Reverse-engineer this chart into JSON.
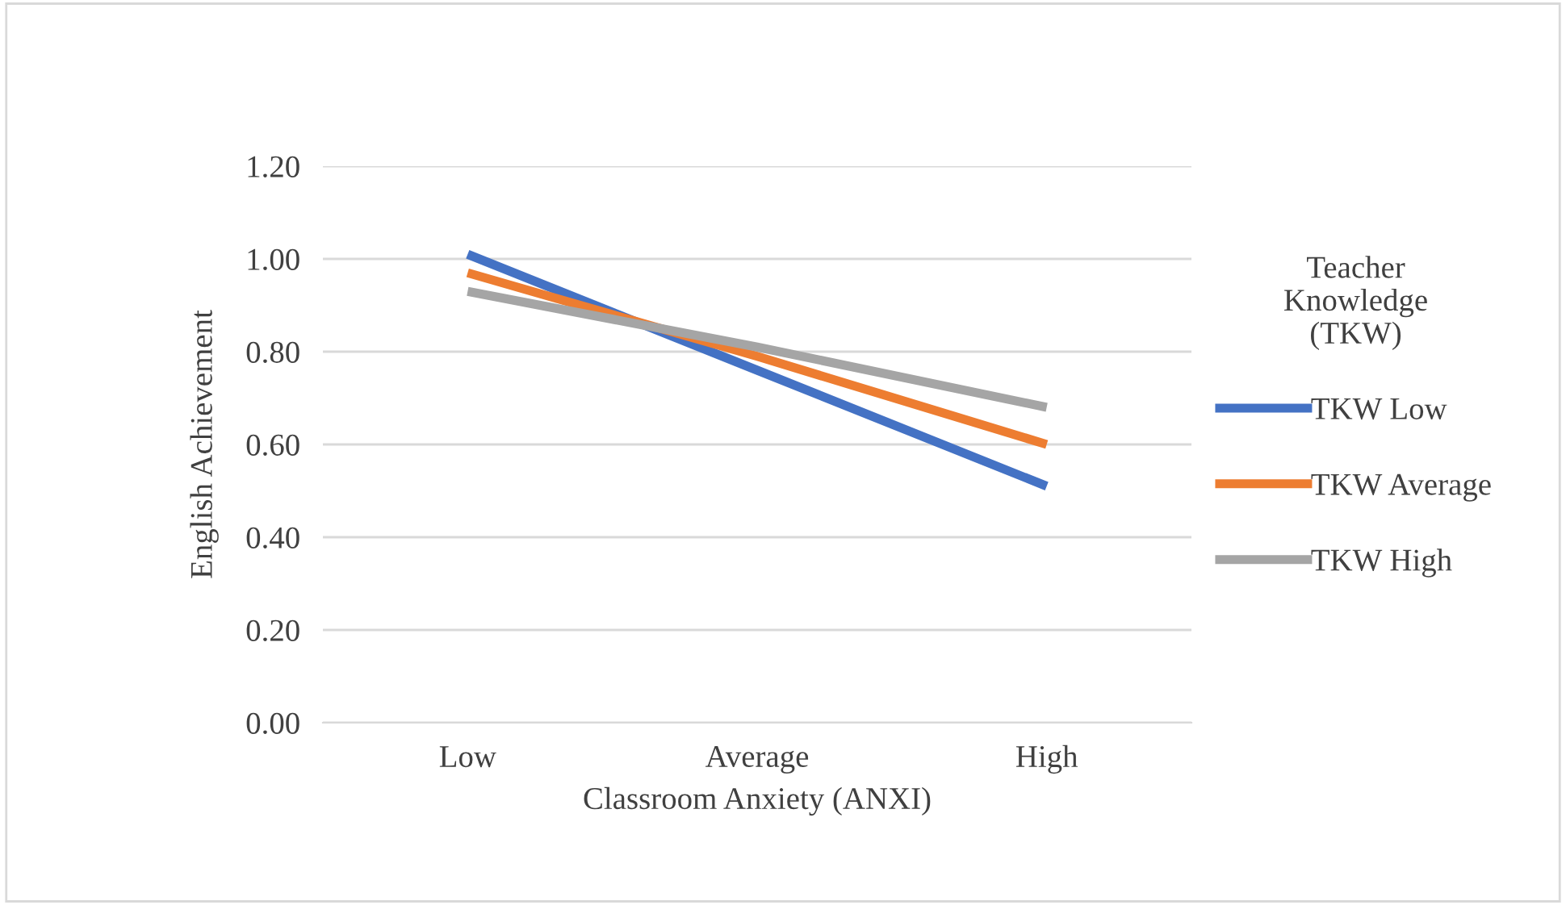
{
  "chart_data": {
    "type": "line",
    "xlabel": "Classroom Anxiety (ANXI)",
    "ylabel": "English Achievement",
    "legend_title": "Teacher\nKnowledge\n(TKW)",
    "categories": [
      "Low",
      "Average",
      "High"
    ],
    "series": [
      {
        "name": "TKW Low",
        "color": "#4472c4",
        "values": [
          1.01,
          0.76,
          0.51
        ]
      },
      {
        "name": "TKW Average",
        "color": "#ed7d31",
        "values": [
          0.97,
          0.79,
          0.6
        ]
      },
      {
        "name": "TKW High",
        "color": "#a5a5a5",
        "values": [
          0.93,
          0.81,
          0.68
        ]
      }
    ],
    "ylim": [
      0,
      1.2
    ],
    "yticks": [
      {
        "value": 0,
        "label": "0.00"
      },
      {
        "value": 0.2,
        "label": "0.20"
      },
      {
        "value": 0.4,
        "label": "0.40"
      },
      {
        "value": 0.6,
        "label": "0.60"
      },
      {
        "value": 0.8,
        "label": "0.80"
      },
      {
        "value": 1.0,
        "label": "1.00"
      },
      {
        "value": 1.2,
        "label": "1.20"
      }
    ],
    "grid": "y",
    "legend": "right",
    "marker": "none",
    "line_style": "solid"
  }
}
